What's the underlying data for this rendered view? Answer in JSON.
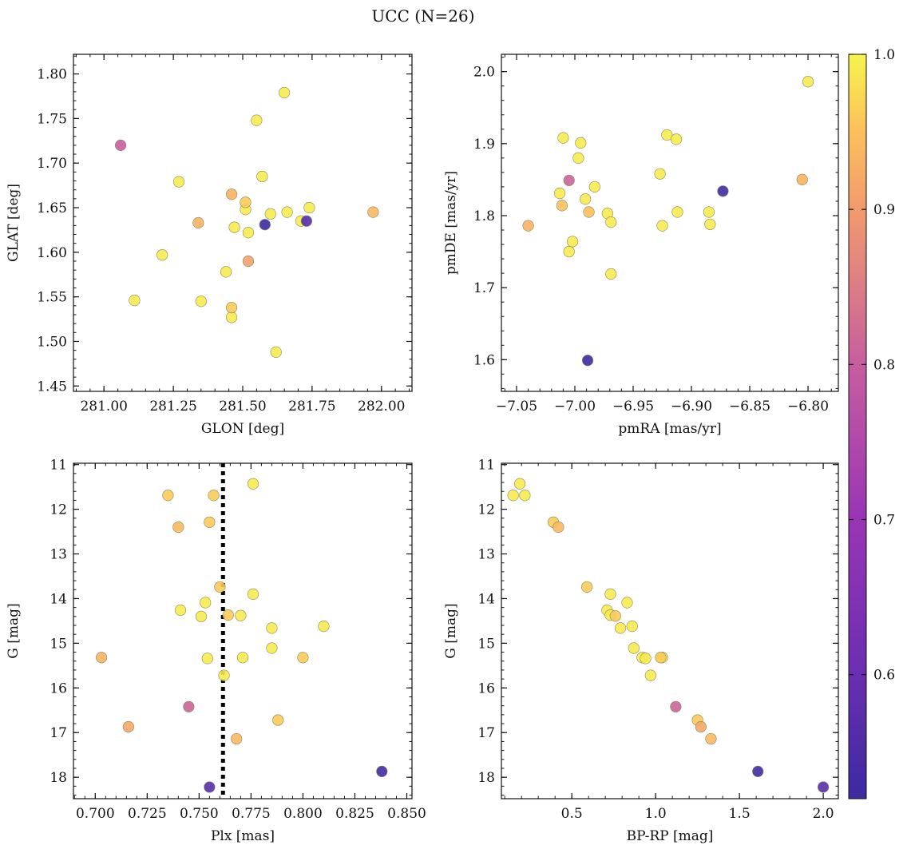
{
  "figure": {
    "suptitle": "UCC (N=26)"
  },
  "colorbar": {
    "range": [
      0.52,
      1.0
    ],
    "ticks": [
      0.6,
      0.7,
      0.8,
      0.9,
      1.0
    ],
    "tick_labels": [
      "0.6",
      "0.7",
      "0.8",
      "0.9",
      "1.0"
    ],
    "colormap": "plasma"
  },
  "chart_data": [
    {
      "type": "scatter",
      "id": "glon-glat",
      "xlabel": "GLON [deg]",
      "ylabel": "GLAT [deg]",
      "xlim": [
        280.89,
        282.11
      ],
      "ylim": [
        1.444,
        1.822
      ],
      "y_inverted": false,
      "xticks": [
        281.0,
        281.25,
        281.5,
        281.75,
        282.0
      ],
      "xtick_labels": [
        "281.00",
        "281.25",
        "281.50",
        "281.75",
        "282.00"
      ],
      "yticks": [
        1.45,
        1.5,
        1.55,
        1.6,
        1.65,
        1.7,
        1.75,
        1.8
      ],
      "ytick_labels": [
        "1.45",
        "1.50",
        "1.55",
        "1.60",
        "1.65",
        "1.70",
        "1.75",
        "1.80"
      ],
      "points": [
        {
          "x": 281.06,
          "y": 1.72,
          "c": 0.8
        },
        {
          "x": 281.65,
          "y": 1.779,
          "c": 0.99
        },
        {
          "x": 281.55,
          "y": 1.748,
          "c": 0.99
        },
        {
          "x": 281.27,
          "y": 1.679,
          "c": 0.99
        },
        {
          "x": 281.57,
          "y": 1.685,
          "c": 0.99
        },
        {
          "x": 281.46,
          "y": 1.665,
          "c": 0.93
        },
        {
          "x": 281.51,
          "y": 1.656,
          "c": 0.96
        },
        {
          "x": 281.51,
          "y": 1.648,
          "c": 0.99
        },
        {
          "x": 281.6,
          "y": 1.643,
          "c": 0.99
        },
        {
          "x": 281.66,
          "y": 1.645,
          "c": 0.99
        },
        {
          "x": 281.74,
          "y": 1.65,
          "c": 0.99
        },
        {
          "x": 281.97,
          "y": 1.645,
          "c": 0.94
        },
        {
          "x": 281.34,
          "y": 1.633,
          "c": 0.93
        },
        {
          "x": 281.58,
          "y": 1.631,
          "c": 0.52
        },
        {
          "x": 281.71,
          "y": 1.635,
          "c": 0.99
        },
        {
          "x": 281.73,
          "y": 1.635,
          "c": 0.57
        },
        {
          "x": 281.47,
          "y": 1.628,
          "c": 0.99
        },
        {
          "x": 281.52,
          "y": 1.622,
          "c": 0.99
        },
        {
          "x": 281.21,
          "y": 1.597,
          "c": 0.99
        },
        {
          "x": 281.52,
          "y": 1.59,
          "c": 0.91
        },
        {
          "x": 281.44,
          "y": 1.578,
          "c": 0.99
        },
        {
          "x": 281.11,
          "y": 1.546,
          "c": 0.99
        },
        {
          "x": 281.35,
          "y": 1.545,
          "c": 0.99
        },
        {
          "x": 281.46,
          "y": 1.538,
          "c": 0.96
        },
        {
          "x": 281.46,
          "y": 1.527,
          "c": 0.99
        },
        {
          "x": 281.62,
          "y": 1.488,
          "c": 0.99
        }
      ]
    },
    {
      "type": "scatter",
      "id": "pmra-pmde",
      "xlabel": "pmRA [mas/yr]",
      "ylabel": "pmDE [mas/yr]",
      "xlim": [
        -7.063,
        -6.774
      ],
      "ylim": [
        1.556,
        2.024
      ],
      "y_inverted": false,
      "xticks": [
        -7.05,
        -7.0,
        -6.95,
        -6.9,
        -6.85,
        -6.8
      ],
      "xtick_labels": [
        "−7.05",
        "−7.00",
        "−6.95",
        "−6.90",
        "−6.85",
        "−6.80"
      ],
      "yticks": [
        1.6,
        1.7,
        1.8,
        1.9,
        2.0
      ],
      "ytick_labels": [
        "1.6",
        "1.7",
        "1.8",
        "1.9",
        "2.0"
      ],
      "points": [
        {
          "x": -6.8,
          "y": 1.986,
          "c": 0.99
        },
        {
          "x": -6.921,
          "y": 1.912,
          "c": 0.99
        },
        {
          "x": -6.913,
          "y": 1.906,
          "c": 0.99
        },
        {
          "x": -7.01,
          "y": 1.908,
          "c": 0.99
        },
        {
          "x": -6.995,
          "y": 1.901,
          "c": 0.99
        },
        {
          "x": -6.997,
          "y": 1.88,
          "c": 0.99
        },
        {
          "x": -6.927,
          "y": 1.858,
          "c": 0.99
        },
        {
          "x": -7.005,
          "y": 1.849,
          "c": 0.81
        },
        {
          "x": -6.805,
          "y": 1.85,
          "c": 0.93
        },
        {
          "x": -6.983,
          "y": 1.84,
          "c": 0.99
        },
        {
          "x": -6.873,
          "y": 1.834,
          "c": 0.53
        },
        {
          "x": -7.013,
          "y": 1.831,
          "c": 0.99
        },
        {
          "x": -6.991,
          "y": 1.823,
          "c": 0.99
        },
        {
          "x": -7.011,
          "y": 1.814,
          "c": 0.95
        },
        {
          "x": -6.988,
          "y": 1.805,
          "c": 0.95
        },
        {
          "x": -6.972,
          "y": 1.803,
          "c": 0.99
        },
        {
          "x": -6.912,
          "y": 1.805,
          "c": 0.99
        },
        {
          "x": -6.885,
          "y": 1.805,
          "c": 0.99
        },
        {
          "x": -6.969,
          "y": 1.791,
          "c": 0.99
        },
        {
          "x": -6.925,
          "y": 1.786,
          "c": 0.99
        },
        {
          "x": -6.884,
          "y": 1.788,
          "c": 0.99
        },
        {
          "x": -7.04,
          "y": 1.786,
          "c": 0.93
        },
        {
          "x": -7.002,
          "y": 1.764,
          "c": 0.99
        },
        {
          "x": -7.005,
          "y": 1.75,
          "c": 0.99
        },
        {
          "x": -6.969,
          "y": 1.719,
          "c": 0.99
        },
        {
          "x": -6.989,
          "y": 1.599,
          "c": 0.52
        }
      ]
    },
    {
      "type": "scatter",
      "id": "plx-g",
      "xlabel": "Plx [mas]",
      "ylabel": "G [mag]",
      "xlim": [
        0.6895,
        0.8525
      ],
      "ylim": [
        10.97,
        18.48
      ],
      "y_inverted": true,
      "vline": {
        "x": 0.7615,
        "style": "dotted"
      },
      "xticks": [
        0.7,
        0.725,
        0.75,
        0.775,
        0.8,
        0.825,
        0.85
      ],
      "xtick_labels": [
        "0.700",
        "0.725",
        "0.750",
        "0.775",
        "0.800",
        "0.825",
        "0.850"
      ],
      "yticks": [
        11,
        12,
        13,
        14,
        15,
        16,
        17,
        18
      ],
      "ytick_labels": [
        "11",
        "12",
        "13",
        "14",
        "15",
        "16",
        "17",
        "18"
      ],
      "points": [
        {
          "x": 0.776,
          "y": 11.43,
          "c": 0.99
        },
        {
          "x": 0.735,
          "y": 11.69,
          "c": 0.96
        },
        {
          "x": 0.757,
          "y": 11.69,
          "c": 0.96
        },
        {
          "x": 0.74,
          "y": 12.4,
          "c": 0.94
        },
        {
          "x": 0.755,
          "y": 12.29,
          "c": 0.96
        },
        {
          "x": 0.76,
          "y": 13.74,
          "c": 0.96
        },
        {
          "x": 0.776,
          "y": 13.9,
          "c": 0.99
        },
        {
          "x": 0.753,
          "y": 14.09,
          "c": 0.99
        },
        {
          "x": 0.741,
          "y": 14.26,
          "c": 0.99
        },
        {
          "x": 0.751,
          "y": 14.4,
          "c": 0.99
        },
        {
          "x": 0.764,
          "y": 14.37,
          "c": 0.96
        },
        {
          "x": 0.77,
          "y": 14.38,
          "c": 0.99
        },
        {
          "x": 0.785,
          "y": 14.66,
          "c": 0.99
        },
        {
          "x": 0.81,
          "y": 14.62,
          "c": 0.99
        },
        {
          "x": 0.785,
          "y": 15.11,
          "c": 0.99
        },
        {
          "x": 0.703,
          "y": 15.32,
          "c": 0.93
        },
        {
          "x": 0.754,
          "y": 15.34,
          "c": 0.99
        },
        {
          "x": 0.771,
          "y": 15.32,
          "c": 0.99
        },
        {
          "x": 0.8,
          "y": 15.32,
          "c": 0.96
        },
        {
          "x": 0.762,
          "y": 15.72,
          "c": 0.99
        },
        {
          "x": 0.745,
          "y": 16.42,
          "c": 0.81
        },
        {
          "x": 0.788,
          "y": 16.72,
          "c": 0.96
        },
        {
          "x": 0.716,
          "y": 16.87,
          "c": 0.92
        },
        {
          "x": 0.768,
          "y": 17.14,
          "c": 0.94
        },
        {
          "x": 0.838,
          "y": 17.87,
          "c": 0.53
        },
        {
          "x": 0.755,
          "y": 18.22,
          "c": 0.57
        }
      ]
    },
    {
      "type": "scatter",
      "id": "bprp-g",
      "xlabel": "BP-RP [mag]",
      "ylabel": "G [mag]",
      "xlim": [
        0.08,
        2.09
      ],
      "ylim": [
        10.97,
        18.48
      ],
      "y_inverted": true,
      "xticks": [
        0.5,
        1.0,
        1.5,
        2.0
      ],
      "xtick_labels": [
        "0.5",
        "1.0",
        "1.5",
        "2.0"
      ],
      "yticks": [
        11,
        12,
        13,
        14,
        15,
        16,
        17,
        18
      ],
      "ytick_labels": [
        "11",
        "12",
        "13",
        "14",
        "15",
        "16",
        "17",
        "18"
      ],
      "points": [
        {
          "x": 0.19,
          "y": 11.43,
          "c": 0.99
        },
        {
          "x": 0.15,
          "y": 11.69,
          "c": 0.99
        },
        {
          "x": 0.22,
          "y": 11.69,
          "c": 0.99
        },
        {
          "x": 0.39,
          "y": 12.29,
          "c": 0.96
        },
        {
          "x": 0.42,
          "y": 12.4,
          "c": 0.94
        },
        {
          "x": 0.59,
          "y": 13.74,
          "c": 0.96
        },
        {
          "x": 0.73,
          "y": 13.9,
          "c": 0.99
        },
        {
          "x": 0.83,
          "y": 14.09,
          "c": 0.99
        },
        {
          "x": 0.71,
          "y": 14.26,
          "c": 0.99
        },
        {
          "x": 0.73,
          "y": 14.37,
          "c": 0.99
        },
        {
          "x": 0.76,
          "y": 14.39,
          "c": 0.96
        },
        {
          "x": 0.86,
          "y": 14.62,
          "c": 0.99
        },
        {
          "x": 0.79,
          "y": 14.66,
          "c": 0.99
        },
        {
          "x": 0.87,
          "y": 15.11,
          "c": 0.99
        },
        {
          "x": 0.92,
          "y": 15.32,
          "c": 0.99
        },
        {
          "x": 0.94,
          "y": 15.34,
          "c": 0.99
        },
        {
          "x": 1.03,
          "y": 15.32,
          "c": 0.96
        },
        {
          "x": 1.04,
          "y": 15.32,
          "c": 0.99
        },
        {
          "x": 0.97,
          "y": 15.72,
          "c": 0.99
        },
        {
          "x": 1.12,
          "y": 16.42,
          "c": 0.81
        },
        {
          "x": 1.25,
          "y": 16.72,
          "c": 0.96
        },
        {
          "x": 1.27,
          "y": 16.87,
          "c": 0.92
        },
        {
          "x": 1.33,
          "y": 17.14,
          "c": 0.94
        },
        {
          "x": 1.61,
          "y": 17.87,
          "c": 0.53
        },
        {
          "x": 2.0,
          "y": 18.22,
          "c": 0.57
        }
      ]
    }
  ]
}
